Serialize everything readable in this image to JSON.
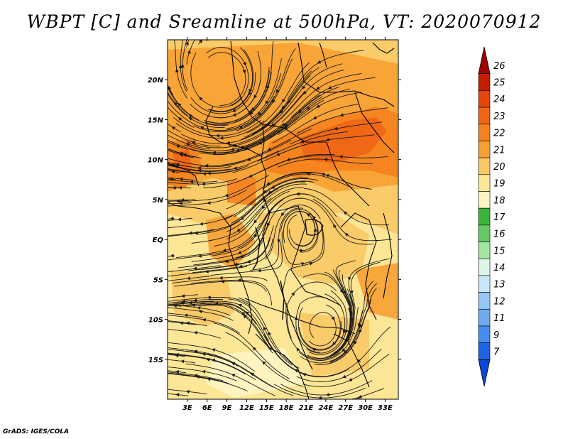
{
  "title": "WBPT [C] and Sreamline at 500hPa, VT: 2020070912",
  "footer": "GrADS: IGES/COLA",
  "map": {
    "lon_range": [
      0,
      35
    ],
    "lat_range": [
      -20,
      25
    ],
    "x_ticks": [
      "3E",
      "6E",
      "9E",
      "12E",
      "15E",
      "18E",
      "21E",
      "24E",
      "27E",
      "30E",
      "33E"
    ],
    "y_ticks": [
      "20N",
      "15N",
      "10N",
      "5N",
      "EQ",
      "5S",
      "10S",
      "15S"
    ],
    "y_tick_values": [
      20,
      15,
      10,
      5,
      0,
      -5,
      -10,
      -15
    ],
    "x_tick_values": [
      3,
      6,
      9,
      12,
      15,
      18,
      21,
      24,
      27,
      30,
      33
    ]
  },
  "colorbar": {
    "labels": [
      "26",
      "25",
      "24",
      "23",
      "22",
      "21",
      "20",
      "19",
      "18",
      "17",
      "16",
      "15",
      "14",
      "13",
      "12",
      "11",
      "9",
      "7"
    ],
    "colors": [
      "#a50000",
      "#c81e00",
      "#e6460a",
      "#f06414",
      "#f5821e",
      "#f7a032",
      "#fac864",
      "#fde696",
      "#fff5c3",
      "#3cb43c",
      "#64c864",
      "#a0e6a0",
      "#dcf5e6",
      "#c8e6fa",
      "#96c8f5",
      "#6eaaf0",
      "#468cf0",
      "#1e64e6",
      "#0a4ad2"
    ]
  }
}
